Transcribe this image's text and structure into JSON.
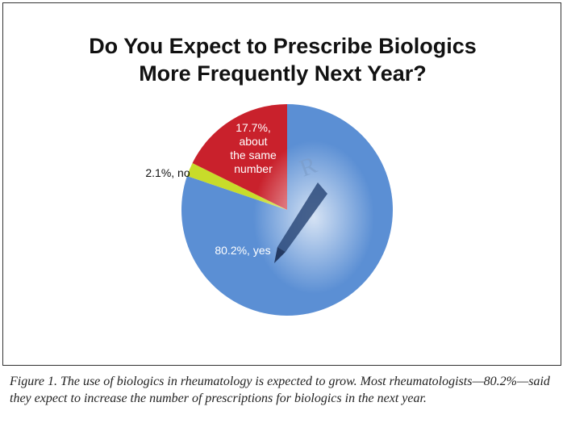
{
  "chart_data": {
    "type": "pie",
    "title_lines": [
      "Do You Expect to Prescribe Biologics",
      "More Frequently Next Year?"
    ],
    "slices": [
      {
        "name": "yes",
        "value": 80.2,
        "label_lines": [
          "80.2%, yes"
        ],
        "color": "#5b8fd4"
      },
      {
        "name": "no",
        "value": 2.1,
        "label_lines": [
          "2.1%, no"
        ],
        "color": "#c8dc2a"
      },
      {
        "name": "about the same number",
        "value": 17.7,
        "label_lines": [
          "17.7%,",
          "about",
          "the same",
          "number"
        ],
        "color": "#c9212c"
      }
    ]
  },
  "caption": "Figure 1. The use of biologics in rheumatology is expected to grow. Most rheumatologists—80.2%—said they expect to increase the number of prescriptions for biologics in the next year."
}
